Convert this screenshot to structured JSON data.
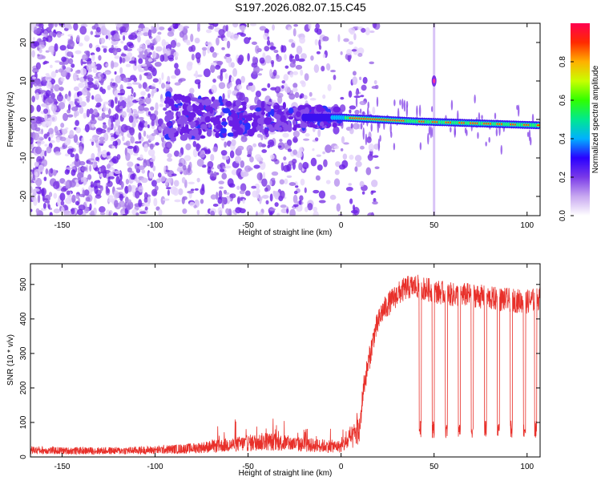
{
  "title": "S197.2026.082.07.15.C45",
  "chart_data": [
    {
      "type": "heatmap",
      "xlabel": "Height of straight line (km)",
      "ylabel": "Frequency (Hz)",
      "xlim": [
        -167,
        107
      ],
      "ylim": [
        -25,
        25
      ],
      "xticks": [
        -150,
        -100,
        -50,
        0,
        50,
        100
      ],
      "yticks": [
        -20,
        -10,
        0,
        10,
        20
      ],
      "colorbar": {
        "label": "Normalized spectral amplitude",
        "range": [
          0,
          1
        ],
        "ticks": [
          0.0,
          0.2,
          0.4,
          0.6,
          0.8
        ],
        "colors": [
          "#ffffff",
          "#c8a8f0",
          "#7a3ae8",
          "#2a00ff",
          "#00b0ff",
          "#00e890",
          "#30ff00",
          "#c8ff00",
          "#ffb000",
          "#ff2a00",
          "#ff0050"
        ]
      },
      "description_values": {
        "tone_center_hz": [
          [
            0,
            0.5
          ],
          [
            40,
            -0.5
          ],
          [
            105,
            -1.5
          ]
        ],
        "strong_band_km": [
          5,
          35
        ],
        "spike_at_km": 50
      }
    },
    {
      "type": "line",
      "xlabel": "Height of straight line (km)",
      "ylabel": "SNR (10 * v/v)",
      "xlim": [
        -167,
        107
      ],
      "ylim": [
        0,
        560
      ],
      "xticks": [
        -150,
        -100,
        -50,
        0,
        50,
        100
      ],
      "yticks": [
        0,
        100,
        200,
        300,
        400,
        500
      ],
      "series": [
        {
          "name": "SNR",
          "color": "#e8302a",
          "x": [
            -167,
            -150,
            -120,
            -100,
            -80,
            -60,
            -40,
            -20,
            0,
            5,
            10,
            12,
            15,
            18,
            22,
            25,
            30,
            35,
            40,
            50,
            60,
            70,
            80,
            90,
            100,
            107
          ],
          "values": [
            20,
            18,
            18,
            20,
            25,
            35,
            45,
            35,
            30,
            50,
            80,
            200,
            280,
            360,
            420,
            440,
            470,
            490,
            495,
            480,
            470,
            470,
            460,
            455,
            450,
            460
          ]
        }
      ],
      "dropouts_km": [
        42,
        49,
        56,
        63,
        70,
        77,
        84,
        91,
        98,
        104
      ],
      "dropout_level": 80
    }
  ]
}
